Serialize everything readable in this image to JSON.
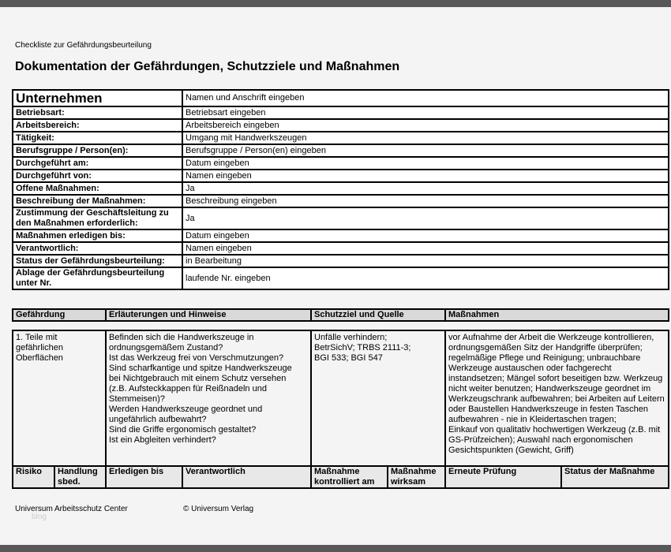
{
  "header": {
    "subtitle": "Checkliste zur Gefährdungsbeurteilung",
    "title": "Dokumentation der Gefährdungen, Schutzziele und Maßnahmen"
  },
  "company": {
    "label": "Unternehmen",
    "value": "Namen und Anschrift eingeben"
  },
  "fields": [
    {
      "label": "Betriebsart:",
      "value": "Betriebsart eingeben"
    },
    {
      "label": "Arbeitsbereich:",
      "value": "Arbeitsbereich eingeben"
    },
    {
      "label": "Tätigkeit:",
      "value": "Umgang mit Handwerkszeugen"
    },
    {
      "label": "Berufsgruppe / Person(en):",
      "value": "Berufsgruppe / Person(en) eingeben"
    },
    {
      "label": "Durchgeführt am:",
      "value": "Datum eingeben"
    },
    {
      "label": "Durchgeführt von:",
      "value": "Namen eingeben"
    },
    {
      "label": "Offene Maßnahmen:",
      "value": "Ja"
    },
    {
      "label": "Beschreibung der Maßnahmen:",
      "value": "Beschreibung eingeben"
    },
    {
      "label": "Zustimmung der Geschäftsleitung zu den Maßnahmen erforderlich:",
      "value": "Ja"
    },
    {
      "label": "Maßnahmen erledigen bis:",
      "value": "Datum eingeben"
    },
    {
      "label": "Verantwortlich:",
      "value": "Namen eingeben"
    },
    {
      "label": "Status der Gefährdungsbeurteilung:",
      "value": "in Bearbeitung"
    },
    {
      "label": "Ablage der Gefährdungsbeurteilung unter Nr.",
      "value": "laufende Nr. eingeben"
    }
  ],
  "hazard_table": {
    "columns": [
      "Gefährdung",
      "Erläuterungen und Hinweise",
      "Schutzziel und Quelle",
      "Maßnahmen"
    ],
    "row": {
      "hazard": "1. Teile mit gefährlichen Oberflächen",
      "notes": [
        "Befinden sich die Handwerkszeuge in ordnungsgemäßem Zustand?",
        "Ist das Werkzeug frei von Verschmutzungen?",
        "Sind scharfkantige und spitze Handwerkszeuge bei Nichtgebrauch mit einem Schutz versehen (z.B. Aufsteckkappen für Reißnadeln und Stemmeisen)?",
        "Werden Handwerkszeuge geordnet und ungefährlich aufbewahrt?",
        "Sind die Griffe ergonomisch gestaltet?",
        "Ist ein  Abgleiten verhindert?"
      ],
      "goal": "Unfälle verhindern; BetrSichV; TRBS 2111-3; BGI 533; BGI 547",
      "measures": [
        "vor Aufnahme der Arbeit die Werkzeuge kontrollieren, ordnungsgemäßen Sitz der Handgriffe überprüfen; regelmäßige Pflege und Reinigung; unbrauchbare Werkzeuge austauschen oder fachgerecht instandsetzen; Mängel sofort beseitigen bzw. Werkzeug nicht weiter benutzen; Handwerkszeuge geordnet im Werkzeugschrank aufbewahren; bei Arbeiten auf Leitern oder Baustellen Handwerkszeuge in festen Taschen aufbewahren - nie in Kleidertaschen tragen;",
        "Einkauf von qualitativ hochwertigen Werkzeug (z.B. mit GS-Prüfzeichen); Auswahl nach ergonomischen Gesichtspunkten (Gewicht, Griff)"
      ]
    },
    "footer_columns": [
      "Risiko",
      "Handlung sbed.",
      "Erledigen bis",
      "Verantwortlich",
      "Maßnahme kontrolliert am",
      "Maßnahme wirksam",
      "Erneute Prüfung",
      "Status der Maßnahme"
    ]
  },
  "footer": {
    "left": "Universum Arbeitsschutz Center",
    "right": "© Universum Verlag",
    "watermark": "blog"
  },
  "colors": {
    "bar": "#585858",
    "header_cell": "#d9d9d9",
    "page": "#f4f4f4"
  }
}
